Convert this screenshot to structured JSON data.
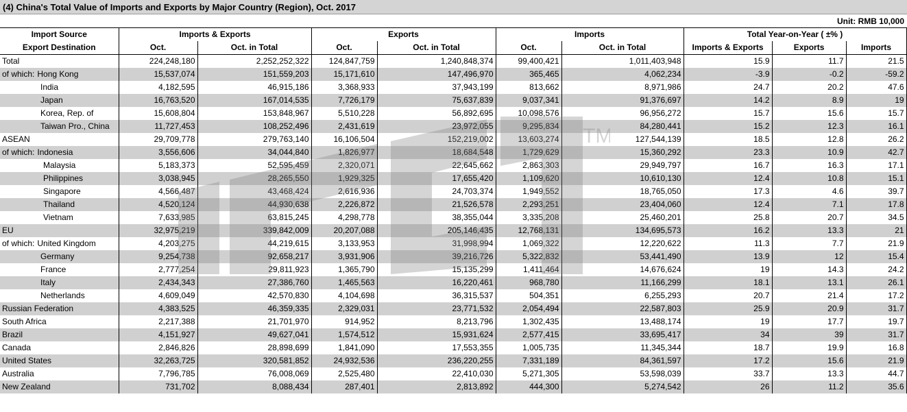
{
  "title": "(4) China's Total Value of Imports and Exports by Major Country (Region), Oct. 2017",
  "unit": "Unit: RMB 10,000",
  "headers": {
    "first_col_top": "Import Source",
    "first_col_bottom": "Export Destination",
    "groups": [
      "Imports & Exports",
      "Exports",
      "Imports",
      "Total Year-on-Year ( ±% )"
    ],
    "sub": [
      "Oct.",
      "Oct. in Total",
      "Oct.",
      "Oct. in Total",
      "Oct.",
      "Oct. in Total",
      "Imports & Exports",
      "Exports",
      "Imports"
    ]
  },
  "watermark": {
    "tm": "TM",
    "color": "#808080"
  },
  "rows": [
    {
      "prefix": "Total",
      "name": "",
      "indent": 0,
      "v": [
        "224,248,180",
        "2,252,252,322",
        "124,847,759",
        "1,240,848,374",
        "99,400,421",
        "1,011,403,948",
        "15.9",
        "11.7",
        "21.5"
      ]
    },
    {
      "prefix": "of which:",
      "name": "Hong Kong",
      "indent": 0,
      "v": [
        "15,537,074",
        "151,559,203",
        "15,171,610",
        "147,496,970",
        "365,465",
        "4,062,234",
        "-3.9",
        "-0.2",
        "-59.2"
      ]
    },
    {
      "prefix": "",
      "name": "India",
      "indent": 1,
      "v": [
        "4,182,595",
        "46,915,186",
        "3,368,933",
        "37,943,199",
        "813,662",
        "8,971,986",
        "24.7",
        "20.2",
        "47.6"
      ]
    },
    {
      "prefix": "",
      "name": "Japan",
      "indent": 1,
      "v": [
        "16,763,520",
        "167,014,535",
        "7,726,179",
        "75,637,839",
        "9,037,341",
        "91,376,697",
        "14.2",
        "8.9",
        "19"
      ]
    },
    {
      "prefix": "",
      "name": "Korea, Rep. of",
      "indent": 1,
      "v": [
        "15,608,804",
        "153,848,967",
        "5,510,228",
        "56,892,695",
        "10,098,576",
        "96,956,272",
        "15.7",
        "15.6",
        "15.7"
      ]
    },
    {
      "prefix": "",
      "name": "Taiwan Pro., China",
      "indent": 1,
      "v": [
        "11,727,453",
        "108,252,496",
        "2,431,619",
        "23,972,055",
        "9,295,834",
        "84,280,441",
        "15.2",
        "12.3",
        "16.1"
      ]
    },
    {
      "prefix": "ASEAN",
      "name": "",
      "indent": 0,
      "v": [
        "29,709,778",
        "279,763,140",
        "16,106,504",
        "152,219,002",
        "13,603,274",
        "127,544,139",
        "18.5",
        "12.8",
        "26.2"
      ]
    },
    {
      "prefix": "of which:",
      "name": "Indonesia",
      "indent": 0,
      "v": [
        "3,556,606",
        "34,044,840",
        "1,826,977",
        "18,684,548",
        "1,729,629",
        "15,360,292",
        "23.3",
        "10.9",
        "42.7"
      ]
    },
    {
      "prefix": "",
      "name": "Malaysia",
      "indent": 2,
      "v": [
        "5,183,373",
        "52,595,459",
        "2,320,071",
        "22,645,662",
        "2,863,303",
        "29,949,797",
        "16.7",
        "16.3",
        "17.1"
      ]
    },
    {
      "prefix": "",
      "name": "Philippines",
      "indent": 2,
      "v": [
        "3,038,945",
        "28,265,550",
        "1,929,325",
        "17,655,420",
        "1,109,620",
        "10,610,130",
        "12.4",
        "10.8",
        "15.1"
      ]
    },
    {
      "prefix": "",
      "name": "Singapore",
      "indent": 2,
      "v": [
        "4,566,487",
        "43,468,424",
        "2,616,936",
        "24,703,374",
        "1,949,552",
        "18,765,050",
        "17.3",
        "4.6",
        "39.7"
      ]
    },
    {
      "prefix": "",
      "name": "Thailand",
      "indent": 2,
      "v": [
        "4,520,124",
        "44,930,638",
        "2,226,872",
        "21,526,578",
        "2,293,251",
        "23,404,060",
        "12.4",
        "7.1",
        "17.8"
      ]
    },
    {
      "prefix": "",
      "name": "Vietnam",
      "indent": 2,
      "v": [
        "7,633,985",
        "63,815,245",
        "4,298,778",
        "38,355,044",
        "3,335,208",
        "25,460,201",
        "25.8",
        "20.7",
        "34.5"
      ]
    },
    {
      "prefix": "EU",
      "name": "",
      "indent": 0,
      "v": [
        "32,975,219",
        "339,842,009",
        "20,207,088",
        "205,146,435",
        "12,768,131",
        "134,695,573",
        "16.2",
        "13.3",
        "21"
      ]
    },
    {
      "prefix": "of which:",
      "name": "United Kingdom",
      "indent": 0,
      "v": [
        "4,203,275",
        "44,219,615",
        "3,133,953",
        "31,998,994",
        "1,069,322",
        "12,220,622",
        "11.3",
        "7.7",
        "21.9"
      ]
    },
    {
      "prefix": "",
      "name": "Germany",
      "indent": 1,
      "v": [
        "9,254,738",
        "92,658,217",
        "3,931,906",
        "39,216,726",
        "5,322,832",
        "53,441,490",
        "13.9",
        "12",
        "15.4"
      ]
    },
    {
      "prefix": "",
      "name": "France",
      "indent": 1,
      "v": [
        "2,777,254",
        "29,811,923",
        "1,365,790",
        "15,135,299",
        "1,411,464",
        "14,676,624",
        "19",
        "14.3",
        "24.2"
      ]
    },
    {
      "prefix": "",
      "name": "Italy",
      "indent": 1,
      "v": [
        "2,434,343",
        "27,386,760",
        "1,465,563",
        "16,220,461",
        "968,780",
        "11,166,299",
        "18.1",
        "13.1",
        "26.1"
      ]
    },
    {
      "prefix": "",
      "name": "Netherlands",
      "indent": 1,
      "v": [
        "4,609,049",
        "42,570,830",
        "4,104,698",
        "36,315,537",
        "504,351",
        "6,255,293",
        "20.7",
        "21.4",
        "17.2"
      ]
    },
    {
      "prefix": "Russian Federation",
      "name": "",
      "indent": 0,
      "v": [
        "4,383,525",
        "46,359,335",
        "2,329,031",
        "23,771,532",
        "2,054,494",
        "22,587,803",
        "25.9",
        "20.9",
        "31.7"
      ]
    },
    {
      "prefix": "South Africa",
      "name": "",
      "indent": 0,
      "v": [
        "2,217,388",
        "21,701,970",
        "914,952",
        "8,213,796",
        "1,302,435",
        "13,488,174",
        "19",
        "17.7",
        "19.7"
      ]
    },
    {
      "prefix": "Brazil",
      "name": "",
      "indent": 0,
      "v": [
        "4,151,927",
        "49,627,041",
        "1,574,512",
        "15,931,624",
        "2,577,415",
        "33,695,417",
        "34",
        "39",
        "31.7"
      ]
    },
    {
      "prefix": "Canada",
      "name": "",
      "indent": 0,
      "v": [
        "2,846,826",
        "28,898,699",
        "1,841,090",
        "17,553,355",
        "1,005,735",
        "11,345,344",
        "18.7",
        "19.9",
        "16.8"
      ]
    },
    {
      "prefix": "United States",
      "name": "",
      "indent": 0,
      "v": [
        "32,263,725",
        "320,581,852",
        "24,932,536",
        "236,220,255",
        "7,331,189",
        "84,361,597",
        "17.2",
        "15.6",
        "21.9"
      ]
    },
    {
      "prefix": "Australia",
      "name": "",
      "indent": 0,
      "v": [
        "7,796,785",
        "76,008,069",
        "2,525,480",
        "22,410,030",
        "5,271,305",
        "53,598,039",
        "33.7",
        "13.3",
        "44.7"
      ]
    },
    {
      "prefix": "New Zealand",
      "name": "",
      "indent": 0,
      "v": [
        "731,702",
        "8,088,434",
        "287,401",
        "2,813,892",
        "444,300",
        "5,274,542",
        "26",
        "11.2",
        "35.6"
      ]
    }
  ]
}
